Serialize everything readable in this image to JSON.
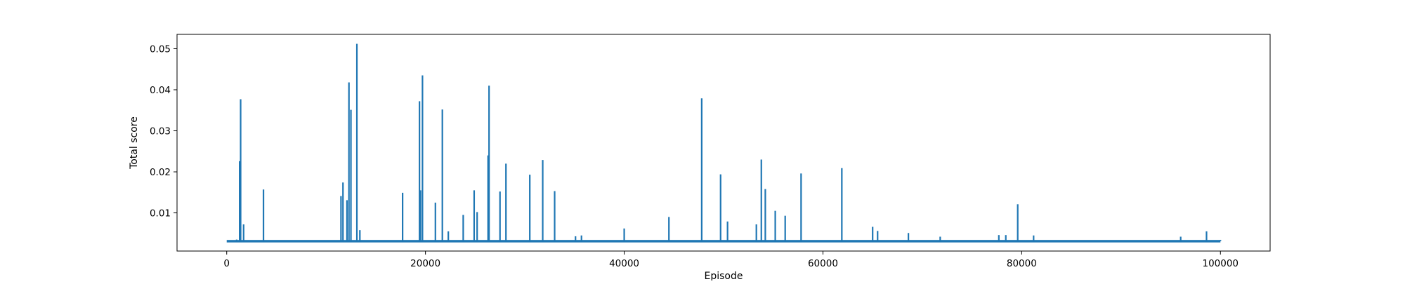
{
  "chart_data": {
    "type": "line",
    "title": "",
    "xlabel": "Episode",
    "ylabel": "Total score",
    "xlim": [
      -5000,
      105000
    ],
    "ylim": [
      0.0007,
      0.0535
    ],
    "xticks": [
      0,
      20000,
      40000,
      60000,
      80000,
      100000
    ],
    "xtick_labels": [
      "0",
      "20000",
      "40000",
      "60000",
      "80000",
      "100000"
    ],
    "yticks": [
      0.01,
      0.02,
      0.03,
      0.04,
      0.05
    ],
    "ytick_labels": [
      "0.01",
      "0.02",
      "0.03",
      "0.04",
      "0.05"
    ],
    "grid": false,
    "series": [
      {
        "color": "#1f77b4",
        "baseline": 0.0031,
        "x_range": [
          0,
          100000
        ],
        "x": [
          0,
          1000,
          1300,
          1400,
          1700,
          3700,
          11500,
          11700,
          12100,
          12300,
          12500,
          13100,
          13400,
          17700,
          19400,
          19500,
          19700,
          21000,
          21700,
          22300,
          23800,
          24900,
          25200,
          26300,
          26400,
          27500,
          28100,
          30500,
          31800,
          33000,
          35100,
          35700,
          40000,
          44500,
          47800,
          49700,
          50400,
          53300,
          53800,
          54200,
          55200,
          56200,
          57800,
          61900,
          65000,
          65500,
          68600,
          71800,
          77700,
          78400,
          79600,
          81200,
          96000,
          98600,
          100000
        ],
        "y": [
          0.0031,
          0.0035,
          0.0226,
          0.0377,
          0.0072,
          0.0157,
          0.0141,
          0.0174,
          0.0131,
          0.0418,
          0.0351,
          0.0512,
          0.0058,
          0.0149,
          0.0372,
          0.0155,
          0.0435,
          0.0125,
          0.0352,
          0.0055,
          0.0095,
          0.0155,
          0.0102,
          0.024,
          0.041,
          0.0152,
          0.022,
          0.0193,
          0.0229,
          0.0153,
          0.0043,
          0.0045,
          0.0062,
          0.009,
          0.0379,
          0.0194,
          0.0079,
          0.0072,
          0.023,
          0.0158,
          0.0105,
          0.0093,
          0.0196,
          0.0209,
          0.0066,
          0.0056,
          0.0051,
          0.0042,
          0.0046,
          0.0046,
          0.0121,
          0.0045,
          0.0042,
          0.0055,
          0.0034
        ]
      }
    ]
  }
}
